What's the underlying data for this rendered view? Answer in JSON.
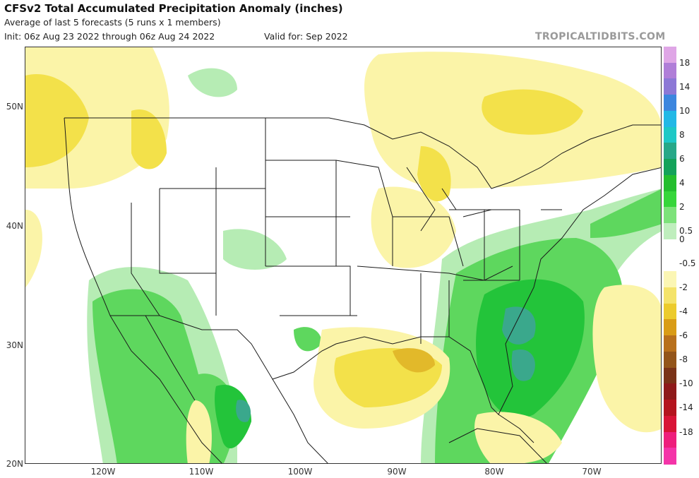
{
  "header": {
    "title": "CFSv2 Total Accumulated Precipitation Anomaly (inches)",
    "subtitle": "Average of last 5 forecasts (5 runs x 1 members)",
    "init": "Init: 06z Aug 23 2022 through 06z Aug 24 2022",
    "valid": "Valid for: Sep 2022",
    "brand": "TROPICALTIDBITS.COM"
  },
  "map": {
    "lat_labels": [
      "50N",
      "40N",
      "30N",
      "20N"
    ],
    "lon_labels": [
      "120W",
      "110W",
      "100W",
      "90W",
      "80W",
      "70W"
    ],
    "colors": {
      "ocean_land_neutral": "#ffffff",
      "light_green": "#b6ecb4",
      "green": "#5ed75e",
      "dark_green": "#23c43a",
      "teal": "#3aa88c",
      "light_yellow": "#fbf4a8",
      "yellow": "#f3e14a",
      "gold": "#e2b92a",
      "borders": "#1a1a1a"
    }
  },
  "colorbar": {
    "labels": [
      "18",
      "14",
      "10",
      "8",
      "6",
      "4",
      "2",
      "0.5",
      "0",
      "-0.5",
      "-2",
      "-4",
      "-6",
      "-8",
      "-10",
      "-14",
      "-18"
    ],
    "colors": [
      "#dfa6e6",
      "#b07ed8",
      "#8c78d6",
      "#3c86de",
      "#22b8e6",
      "#1ec8c6",
      "#27a888",
      "#14a25a",
      "#24be2e",
      "#36d63a",
      "#7de27a",
      "#bfeebd",
      "#ffffff",
      "#ffffff",
      "#fbf6b4",
      "#f4e36a",
      "#eccb2c",
      "#d99c16",
      "#b8701c",
      "#93551a",
      "#7a3318",
      "#8e1a1a",
      "#b4141e",
      "#d81436",
      "#ee1e7c",
      "#f434a8"
    ]
  }
}
